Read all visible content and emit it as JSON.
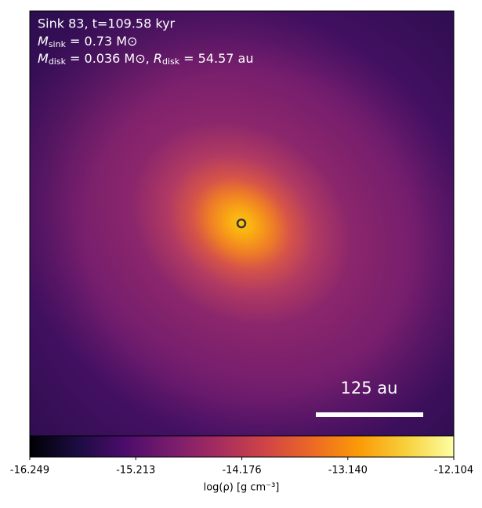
{
  "chart_data": {
    "type": "heatmap",
    "annotations": [
      {
        "text": "Sink 83, t=109.58 kyr"
      },
      {
        "symbol": "M",
        "sub": "sink",
        "text": " = 0.73 M⊙"
      },
      {
        "symbol": "M",
        "sub": "disk",
        "text": " = 0.036 M⊙, ",
        "symbol2": "R",
        "sub2": "disk",
        "text2": " = 54.57 au"
      }
    ],
    "scale_bar_label": "125 au",
    "colorbar_label": "log(ρ) [g cm⁻³]",
    "colormap": "inferno",
    "colormap_colors": [
      "#000004",
      "#1b0c41",
      "#4a0c6b",
      "#781c6d",
      "#a52c60",
      "#cf4446",
      "#ed6925",
      "#fb9b06",
      "#f7d13d",
      "#fcffa4"
    ],
    "clim": [
      -16.249,
      -12.104
    ],
    "cticks": [
      -16.249,
      -15.213,
      -14.176,
      {
        "value": -13.14,
        "label": "-13.140"
      },
      -12.104
    ]
  }
}
